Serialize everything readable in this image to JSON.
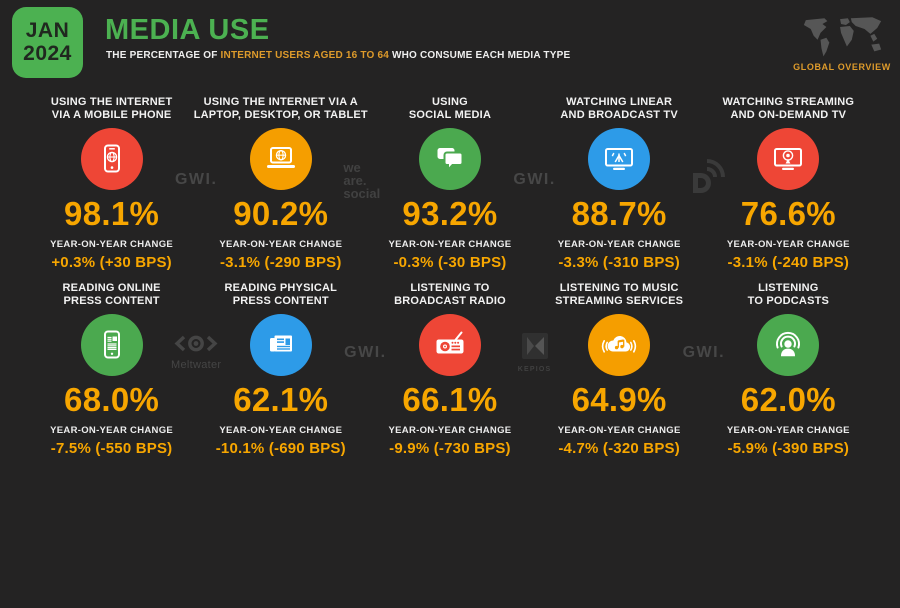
{
  "header": {
    "date_month": "JAN",
    "date_year": "2024",
    "title": "MEDIA USE",
    "subtitle_prefix": "THE PERCENTAGE OF ",
    "subtitle_highlight": "INTERNET USERS AGED 16 TO 64",
    "subtitle_suffix": " WHO CONSUME EACH MEDIA TYPE",
    "overview_label": "GLOBAL OVERVIEW"
  },
  "labels": {
    "yoy_change": "YEAR-ON-YEAR CHANGE"
  },
  "colors": {
    "background": "#242323",
    "green": "#4CB151",
    "accent_orange": "#F7A600",
    "subtitle_orange": "#DE9B2B",
    "badge_text": "#20281F",
    "title_text": "#F2F2F2",
    "logo_gray": "#474747",
    "map_gray": "#565656",
    "circles": {
      "red": "#EE4636",
      "orange": "#F59E00",
      "green": "#4BA94F",
      "blue": "#2D9BE8"
    }
  },
  "stats": [
    {
      "id": "mobile-internet",
      "title_line1": "USING THE INTERNET",
      "title_line2": "VIA A MOBILE PHONE",
      "icon": "mobile-phone-globe-icon",
      "color": "red",
      "value": "98.1%",
      "change": "+0.3% (+30 BPS)"
    },
    {
      "id": "computer-internet",
      "title_line1": "USING THE INTERNET VIA A",
      "title_line2": "LAPTOP, DESKTOP, OR TABLET",
      "icon": "laptop-globe-icon",
      "color": "orange",
      "value": "90.2%",
      "change": "-3.1% (-290 BPS)"
    },
    {
      "id": "social-media",
      "title_line1": "USING",
      "title_line2": "SOCIAL MEDIA",
      "icon": "chat-bubbles-icon",
      "color": "green",
      "value": "93.2%",
      "change": "-0.3% (-30 BPS)"
    },
    {
      "id": "linear-tv",
      "title_line1": "WATCHING LINEAR",
      "title_line2": "AND BROADCAST TV",
      "icon": "tv-antenna-icon",
      "color": "blue",
      "value": "88.7%",
      "change": "-3.3% (-310 BPS)"
    },
    {
      "id": "streaming-tv",
      "title_line1": "WATCHING STREAMING",
      "title_line2": "AND ON-DEMAND TV",
      "icon": "tv-streaming-icon",
      "color": "red",
      "value": "76.6%",
      "change": "-3.1% (-240 BPS)"
    },
    {
      "id": "online-press",
      "title_line1": "READING ONLINE",
      "title_line2": "PRESS CONTENT",
      "icon": "phone-article-icon",
      "color": "green",
      "value": "68.0%",
      "change": "-7.5% (-550 BPS)"
    },
    {
      "id": "physical-press",
      "title_line1": "READING PHYSICAL",
      "title_line2": "PRESS CONTENT",
      "icon": "newspaper-icon",
      "color": "blue",
      "value": "62.1%",
      "change": "-10.1% (-690 BPS)"
    },
    {
      "id": "broadcast-radio",
      "title_line1": "LISTENING TO",
      "title_line2": "BROADCAST RADIO",
      "icon": "radio-icon",
      "color": "red",
      "value": "66.1%",
      "change": "-9.9% (-730 BPS)"
    },
    {
      "id": "music-streaming",
      "title_line1": "LISTENING TO MUSIC",
      "title_line2": "STREAMING SERVICES",
      "icon": "cloud-music-icon",
      "color": "orange",
      "value": "64.9%",
      "change": "-4.7% (-320 BPS)"
    },
    {
      "id": "podcasts",
      "title_line1": "LISTENING",
      "title_line2": "TO PODCASTS",
      "icon": "podcast-icon",
      "color": "green",
      "value": "62.0%",
      "change": "-5.9% (-390 BPS)"
    }
  ],
  "logos": {
    "row1": [
      {
        "gap": 1,
        "type": "gwi",
        "label": "GWI."
      },
      {
        "gap": 2,
        "type": "we-are-social",
        "lines": [
          "we",
          "are.",
          "social"
        ]
      },
      {
        "gap": 3,
        "type": "gwi",
        "label": "GWI."
      },
      {
        "gap": 4,
        "type": "datareportal"
      }
    ],
    "row2": [
      {
        "gap": 1,
        "type": "meltwater",
        "label": "Meltwater"
      },
      {
        "gap": 2,
        "type": "gwi",
        "label": "GWI."
      },
      {
        "gap": 3,
        "type": "kepios",
        "label": "KEPIOS"
      },
      {
        "gap": 4,
        "type": "gwi",
        "label": "GWI."
      }
    ]
  },
  "chart_data": {
    "type": "table",
    "title": "MEDIA USE",
    "subtitle": "THE PERCENTAGE OF INTERNET USERS AGED 16 TO 64 WHO CONSUME EACH MEDIA TYPE",
    "date": "JAN 2024",
    "scope": "GLOBAL OVERVIEW",
    "columns": [
      "metric",
      "percent_of_internet_users",
      "yoy_change_pct",
      "yoy_change_bps"
    ],
    "rows": [
      [
        "Using the internet via a mobile phone",
        98.1,
        0.3,
        30
      ],
      [
        "Using the internet via a laptop, desktop, or tablet",
        90.2,
        -3.1,
        -290
      ],
      [
        "Using social media",
        93.2,
        -0.3,
        -30
      ],
      [
        "Watching linear and broadcast TV",
        88.7,
        -3.3,
        -310
      ],
      [
        "Watching streaming and on-demand TV",
        76.6,
        -3.1,
        -240
      ],
      [
        "Reading online press content",
        68.0,
        -7.5,
        -550
      ],
      [
        "Reading physical press content",
        62.1,
        -10.1,
        -690
      ],
      [
        "Listening to broadcast radio",
        66.1,
        -9.9,
        -730
      ],
      [
        "Listening to music streaming services",
        64.9,
        -4.7,
        -320
      ],
      [
        "Listening to podcasts",
        62.0,
        -5.9,
        -390
      ]
    ]
  }
}
